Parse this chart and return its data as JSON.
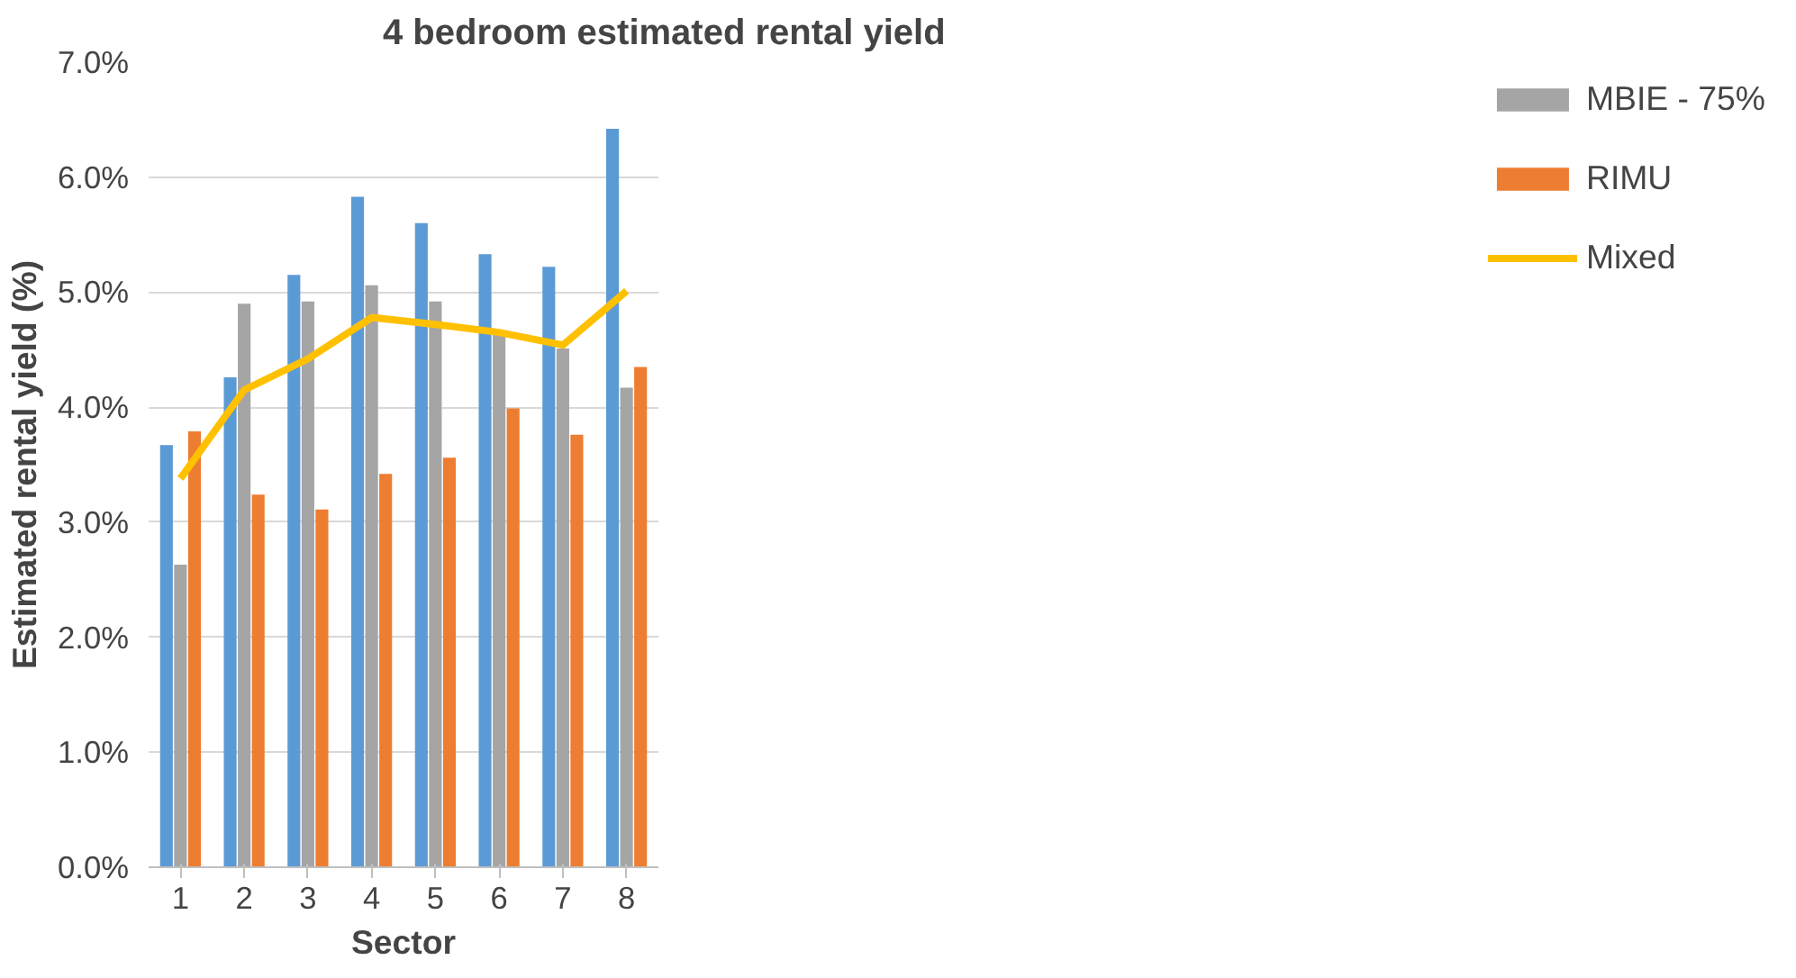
{
  "chart_data": {
    "type": "bar",
    "title": "4 bedroom estimated rental yield",
    "xlabel": "Sector",
    "ylabel": "Estimated rental yield (%)",
    "categories": [
      "1",
      "2",
      "3",
      "4",
      "5",
      "6",
      "7",
      "8"
    ],
    "series": [
      {
        "color": "#5b9bd5",
        "values": [
          3.67,
          4.26,
          5.15,
          5.83,
          5.6,
          5.33,
          5.22,
          6.42
        ]
      },
      {
        "name": "MBIE - 75%",
        "color": "#a5a5a5",
        "values": [
          2.63,
          4.9,
          4.92,
          5.06,
          4.92,
          4.63,
          4.51,
          4.17
        ]
      },
      {
        "name": "RIMU",
        "color": "#ed7d31",
        "values": [
          3.79,
          3.24,
          3.11,
          3.42,
          3.56,
          3.99,
          3.76,
          4.35
        ]
      },
      {
        "name": "Mixed",
        "type": "line",
        "color": "#ffc000",
        "values": [
          3.38,
          4.15,
          4.42,
          4.78,
          4.72,
          4.65,
          4.54,
          5.01
        ]
      }
    ],
    "ylim": [
      0,
      7
    ],
    "yticks": [
      {
        "value": 0,
        "label": "0.0%"
      },
      {
        "value": 1,
        "label": "1.0%"
      },
      {
        "value": 2,
        "label": "2.0%"
      },
      {
        "value": 3,
        "label": "3.0%"
      },
      {
        "value": 4,
        "label": "4.0%"
      },
      {
        "value": 5,
        "label": "5.0%"
      },
      {
        "value": 6,
        "label": "6.0%"
      },
      {
        "value": 7,
        "label": "7.0%"
      }
    ],
    "grid": "y",
    "legend": "right"
  }
}
